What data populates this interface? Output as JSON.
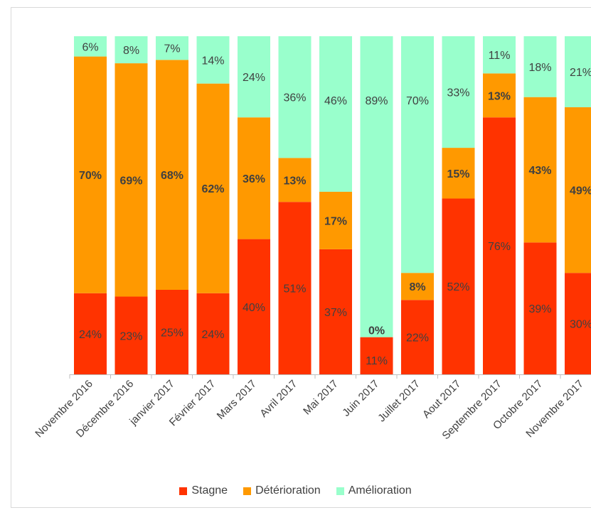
{
  "chart_data": {
    "type": "bar",
    "stacked": true,
    "normalized_percent": true,
    "categories": [
      "Novembre 2016",
      "Décembre 2016",
      "janvier 2017",
      "Février 2017",
      "Mars 2017",
      "Avril 2017",
      "Mai 2017",
      "Juin 2017",
      "Juillet 2017",
      "Aout 2017",
      "Septembre 2017",
      "Octobre 2017",
      "Novembre 2017"
    ],
    "series": [
      {
        "name": "Stagne",
        "color": "#ff3300",
        "label_bold": false,
        "values": [
          24,
          23,
          25,
          24,
          40,
          51,
          37,
          11,
          22,
          52,
          76,
          39,
          30
        ],
        "labels": [
          "24%",
          "23%",
          "25%",
          "24%",
          "40%",
          "51%",
          "37%",
          "11%",
          "22%",
          "52%",
          "76%",
          "39%",
          "30%"
        ]
      },
      {
        "name": "Détérioration",
        "color": "#ff9900",
        "label_bold": true,
        "values": [
          70,
          69,
          68,
          62,
          36,
          13,
          17,
          0,
          8,
          15,
          13,
          43,
          49
        ],
        "labels": [
          "70%",
          "69%",
          "68%",
          "62%",
          "36%",
          "13%",
          "17%",
          "0%",
          "8%",
          "15%",
          "13%",
          "43%",
          "49%"
        ]
      },
      {
        "name": "Amélioration",
        "color": "#99ffcc",
        "label_bold": false,
        "values": [
          6,
          8,
          7,
          14,
          24,
          36,
          46,
          89,
          70,
          33,
          11,
          18,
          21
        ],
        "labels": [
          "6%",
          "8%",
          "7%",
          "14%",
          "24%",
          "36%",
          "46%",
          "89%",
          "70%",
          "33%",
          "11%",
          "18%",
          "21%"
        ]
      }
    ],
    "title": "",
    "xlabel": "",
    "ylabel": "",
    "ylim": [
      0,
      100
    ],
    "grid": false,
    "legend_position": "bottom"
  }
}
